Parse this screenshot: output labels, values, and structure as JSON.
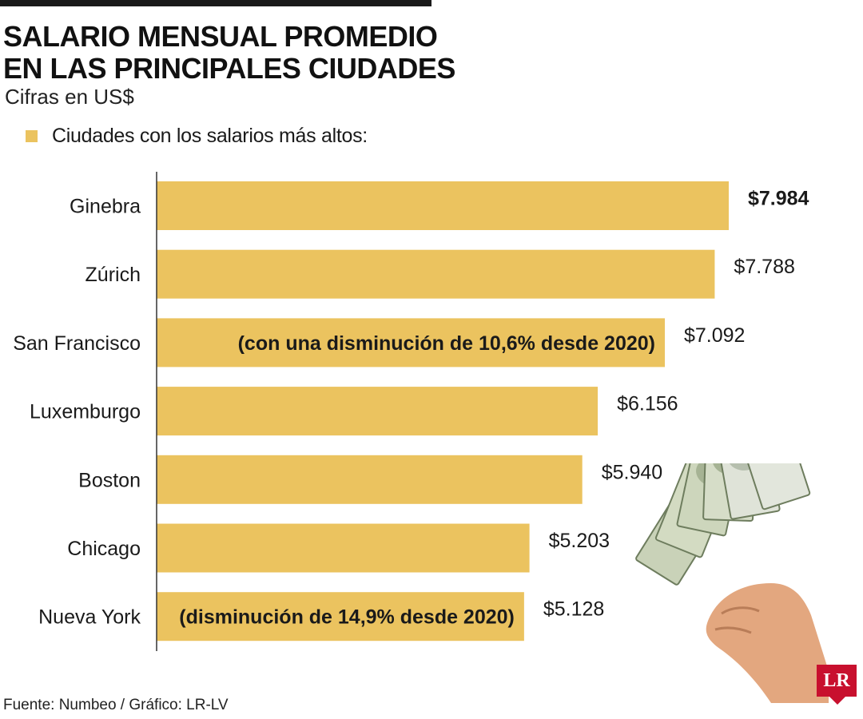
{
  "header": {
    "title_line1": "SALARIO MENSUAL PROMEDIO",
    "title_line2": "EN LAS PRINCIPALES CIUDADES",
    "subtitle": "Cifras en US$"
  },
  "legend": {
    "label": "Ciudades con los salarios más altos:"
  },
  "colors": {
    "bar": "#ebc35f",
    "text": "#1a1a1a",
    "axis": "#333333",
    "logo": "#c8102e"
  },
  "chart_data": {
    "type": "bar",
    "orientation": "horizontal",
    "title": "SALARIO MENSUAL PROMEDIO EN LAS PRINCIPALES CIUDADES",
    "subtitle": "Cifras en US$",
    "categories": [
      "Ginebra",
      "Zúrich",
      "San Francisco",
      "Luxemburgo",
      "Boston",
      "Chicago",
      "Nueva York"
    ],
    "values": [
      7984,
      7788,
      7092,
      6156,
      5940,
      5203,
      5128
    ],
    "value_labels": [
      "$7.984",
      "$7.788",
      "$7.092",
      "$6.156",
      "$5.940",
      "$5.203",
      "$5.128"
    ],
    "bar_annotations": [
      "",
      "",
      "(con una disminución de 10,6% desde 2020)",
      "",
      "",
      "",
      "(disminución de 14,9% desde 2020)"
    ],
    "highlighted": [
      true,
      false,
      false,
      false,
      false,
      false,
      false
    ],
    "series": [
      {
        "name": "Ciudades con los salarios más altos:",
        "values": [
          7984,
          7788,
          7092,
          6156,
          5940,
          5203,
          5128
        ]
      }
    ],
    "xlim": [
      0,
      8000
    ],
    "grid": false,
    "legend_position": "top-left"
  },
  "footer": {
    "source": "Fuente: Numbeo / Gráfico: LR-LV",
    "logo_text": "LR"
  },
  "icons": {
    "money": "money-hand-icon"
  }
}
